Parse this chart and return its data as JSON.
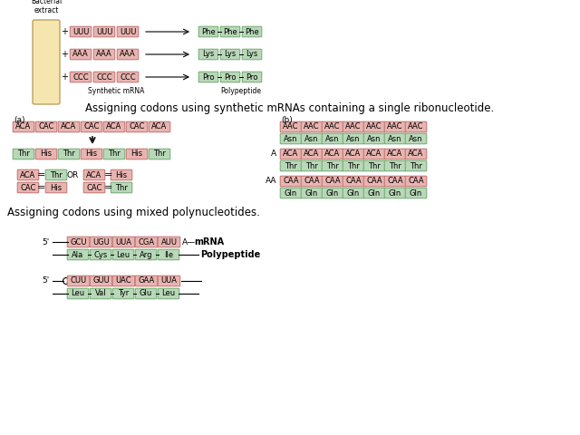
{
  "title1": "Assigning codons using synthetic mRNAs containing a single ribonucleotide.",
  "title2": "Assigning codons using mixed polynucleotides.",
  "red_fc": "#e8b4b0",
  "red_ec": "#c07070",
  "green_fc": "#b8d8b8",
  "green_ec": "#70a870",
  "tube_fc": "#f5e6b0",
  "tube_ec": "#c0a060",
  "bg_color": "#ffffff",
  "top_rows": [
    {
      "codons": [
        "UUU",
        "UUU",
        "UUU"
      ],
      "aas": [
        "Phe",
        "Phe",
        "Phe"
      ]
    },
    {
      "codons": [
        "AAA",
        "AAA",
        "AAA"
      ],
      "aas": [
        "Lys",
        "Lys",
        "Lys"
      ]
    },
    {
      "codons": [
        "CCC",
        "CCC",
        "CCC"
      ],
      "aas": [
        "Pro",
        "Pro",
        "Pro"
      ]
    }
  ],
  "ml_row1": [
    "ACA",
    "CAC",
    "ACA",
    "CAC",
    "ACA",
    "CAC",
    "ACA"
  ],
  "ml_row2_green": [
    true,
    false,
    true,
    false,
    true,
    false,
    true
  ],
  "ml_row2": [
    "Thr",
    "His",
    "Thr",
    "His",
    "Thr",
    "His",
    "Thr"
  ],
  "mr_row_aac": [
    "AAC",
    "AAC",
    "AAC",
    "AAC",
    "AAC",
    "AAC",
    "AAC"
  ],
  "mr_row_asn": [
    "Asn",
    "Asn",
    "Asn",
    "Asn",
    "Asn",
    "Asn",
    "Asn"
  ],
  "mr_row_aca": [
    "ACA",
    "ACA",
    "ACA",
    "ACA",
    "ACA",
    "ACA",
    "ACA"
  ],
  "mr_row_thr": [
    "Thr",
    "Thr",
    "Thr",
    "Thr",
    "Thr",
    "Thr",
    "Thr"
  ],
  "mr_row_caa": [
    "CAA",
    "CAA",
    "CAA",
    "CAA",
    "CAA",
    "CAA",
    "CAA"
  ],
  "mr_row_gln": [
    "Gln",
    "Gln",
    "Gln",
    "Gln",
    "Gln",
    "Gln",
    "Gln"
  ],
  "bt_row1_codons": [
    "GCU",
    "UGU",
    "UUA",
    "CGA",
    "AUU"
  ],
  "bt_row1_aas": [
    "Ala",
    "Cys",
    "Leu",
    "Arg",
    "Ile"
  ],
  "bt_row2_codons": [
    "CUU",
    "GUU",
    "UAC",
    "GAA",
    "UUA"
  ],
  "bt_row2_aas": [
    "Leu",
    "Val",
    "Tyr",
    "Glu",
    "Leu"
  ]
}
